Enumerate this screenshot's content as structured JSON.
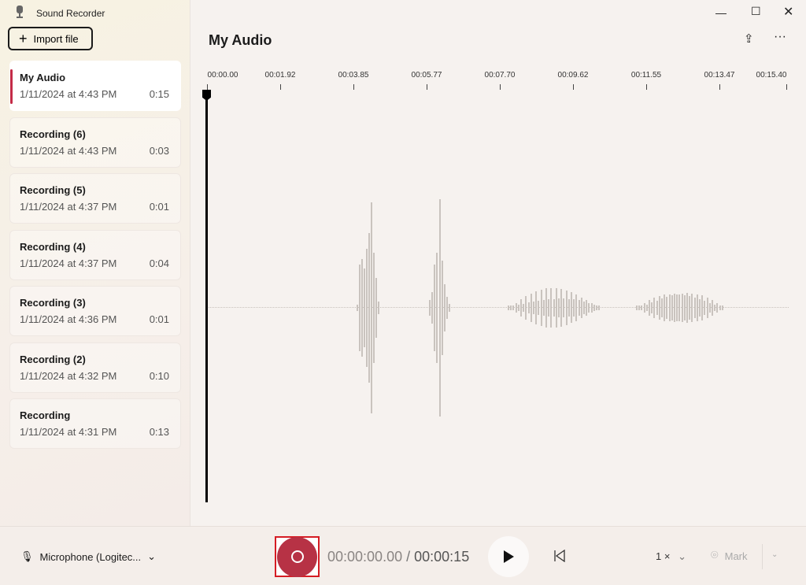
{
  "app": {
    "title": "Sound Recorder",
    "import_label": "Import file"
  },
  "recordings": [
    {
      "name": "My Audio",
      "date": "1/11/2024 at 4:43 PM",
      "duration": "0:15",
      "selected": true
    },
    {
      "name": "Recording (6)",
      "date": "1/11/2024 at 4:43 PM",
      "duration": "0:03"
    },
    {
      "name": "Recording (5)",
      "date": "1/11/2024 at 4:37 PM",
      "duration": "0:01"
    },
    {
      "name": "Recording (4)",
      "date": "1/11/2024 at 4:37 PM",
      "duration": "0:04"
    },
    {
      "name": "Recording (3)",
      "date": "1/11/2024 at 4:36 PM",
      "duration": "0:01"
    },
    {
      "name": "Recording (2)",
      "date": "1/11/2024 at 4:32 PM",
      "duration": "0:10"
    },
    {
      "name": "Recording",
      "date": "1/11/2024 at 4:31 PM",
      "duration": "0:13"
    }
  ],
  "main": {
    "title": "My Audio",
    "timeline": [
      "00:00.00",
      "00:01.92",
      "00:03.85",
      "00:05.77",
      "00:07.70",
      "00:09.62",
      "00:11.55",
      "00:13.47",
      "00:15.40"
    ]
  },
  "controls": {
    "microphone": "Microphone (Logitec...",
    "current_time": "00:00:00.00",
    "separator": "/",
    "total_time": "00:00:15",
    "speed": "1 ×",
    "mark_label": "Mark"
  },
  "colors": {
    "accent": "#c42b47",
    "record": "#b73245"
  }
}
